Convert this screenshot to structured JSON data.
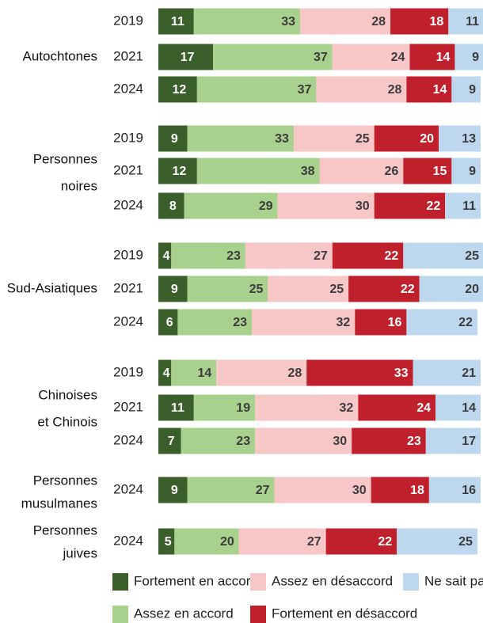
{
  "chart_data": {
    "type": "bar",
    "orientation": "horizontal",
    "stacked": true,
    "xlim": [
      0,
      100
    ],
    "series": [
      {
        "name": "Fortement en accord",
        "color": "#3a5f2b"
      },
      {
        "name": "Assez en accord",
        "color": "#a9d18e"
      },
      {
        "name": "Assez en désaccord",
        "color": "#f7c6c7"
      },
      {
        "name": "Fortement en désaccord",
        "color": "#c0202b"
      },
      {
        "name": "Ne sait pas",
        "color": "#bdd7ee"
      }
    ],
    "groups": [
      {
        "label": [
          "Autochtones"
        ],
        "rows": [
          {
            "year": "2019",
            "values": [
              11,
              33,
              28,
              18,
              11
            ]
          },
          {
            "year": "2021",
            "values": [
              17,
              37,
              24,
              14,
              9
            ]
          },
          {
            "year": "2024",
            "values": [
              12,
              37,
              28,
              14,
              9
            ]
          }
        ]
      },
      {
        "label": [
          "Personnes",
          "noires"
        ],
        "rows": [
          {
            "year": "2019",
            "values": [
              9,
              33,
              25,
              20,
              13
            ]
          },
          {
            "year": "2021",
            "values": [
              12,
              38,
              26,
              15,
              9
            ]
          },
          {
            "year": "2024",
            "values": [
              8,
              29,
              30,
              22,
              11
            ]
          }
        ]
      },
      {
        "label": [
          "Sud-Asiatiques"
        ],
        "rows": [
          {
            "year": "2019",
            "values": [
              4,
              23,
              27,
              22,
              25
            ]
          },
          {
            "year": "2021",
            "values": [
              9,
              25,
              25,
              22,
              20
            ]
          },
          {
            "year": "2024",
            "values": [
              6,
              23,
              32,
              16,
              22
            ]
          }
        ]
      },
      {
        "label": [
          "Chinoises",
          "et Chinois"
        ],
        "rows": [
          {
            "year": "2019",
            "values": [
              4,
              14,
              28,
              33,
              21
            ]
          },
          {
            "year": "2021",
            "values": [
              11,
              19,
              32,
              24,
              14
            ]
          },
          {
            "year": "2024",
            "values": [
              7,
              23,
              30,
              23,
              17
            ]
          }
        ]
      },
      {
        "label": [
          "Personnes",
          "musulmanes"
        ],
        "rows": [
          {
            "year": "2024",
            "values": [
              9,
              27,
              30,
              18,
              16
            ]
          }
        ]
      },
      {
        "label": [
          "Personnes",
          "juives"
        ],
        "rows": [
          {
            "year": "2024",
            "values": [
              5,
              20,
              27,
              22,
              25
            ]
          }
        ]
      }
    ],
    "legend": {
      "placement": "bottom",
      "order": [
        0,
        2,
        4,
        1,
        3
      ]
    }
  }
}
